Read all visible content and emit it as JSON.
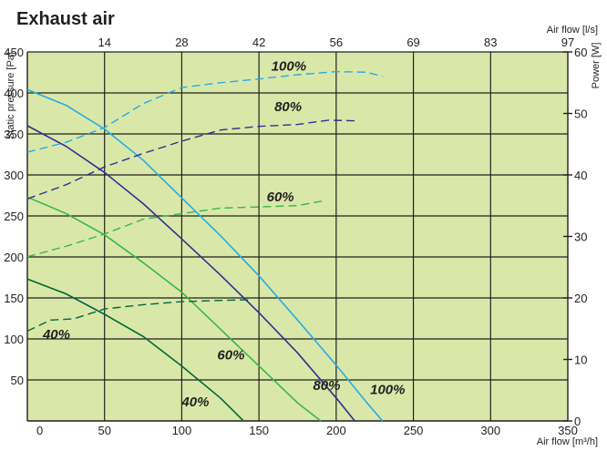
{
  "chart_data": {
    "type": "line",
    "title": "Exhaust air",
    "xlabel_bottom": "Air flow [m³/h]",
    "xlabel_top": "Air flow [l/s]",
    "ylabel_left": "Static pressure [Pa]",
    "ylabel_right": "Power [W]",
    "x_range": [
      0,
      350
    ],
    "y_range": [
      0,
      450
    ],
    "power_range": [
      0,
      60
    ],
    "x_ticks": [
      0,
      50,
      100,
      150,
      200,
      250,
      300,
      350
    ],
    "x_tick_labels": [
      "0",
      "50",
      "100",
      "150",
      "200",
      "250",
      "300",
      "350"
    ],
    "top_ticks_m3h": [
      0,
      50,
      100,
      150,
      200,
      250,
      300,
      350
    ],
    "top_tick_labels": [
      "",
      "14",
      "28",
      "42",
      "56",
      "69",
      "83",
      "97"
    ],
    "y_ticks": [
      50,
      100,
      150,
      200,
      250,
      300,
      350,
      400,
      450
    ],
    "y_tick_labels": [
      "50",
      "100",
      "150",
      "200",
      "250",
      "300",
      "350",
      "400",
      "450"
    ],
    "power_ticks": [
      0,
      10,
      20,
      30,
      40,
      50,
      60
    ],
    "power_tick_labels": [
      "0",
      "10",
      "20",
      "30",
      "40",
      "50",
      "60"
    ],
    "grid": true,
    "colors": {
      "background": "#d9e8a9",
      "grid": "#231f20",
      "s40": "#006837",
      "s60": "#39b54a",
      "s80": "#2e3192",
      "s100": "#29abe2"
    },
    "pressure_series": [
      {
        "name": "40%",
        "color_key": "s40",
        "label_at": [
          100,
          18
        ],
        "points": [
          [
            0,
            173
          ],
          [
            25,
            155
          ],
          [
            50,
            130
          ],
          [
            75,
            103
          ],
          [
            100,
            67
          ],
          [
            125,
            28
          ],
          [
            140,
            0
          ]
        ]
      },
      {
        "name": "60%",
        "color_key": "s60",
        "label_at": [
          123,
          75
        ],
        "points": [
          [
            0,
            273
          ],
          [
            25,
            253
          ],
          [
            50,
            227
          ],
          [
            75,
            193
          ],
          [
            100,
            157
          ],
          [
            125,
            112
          ],
          [
            150,
            67
          ],
          [
            175,
            22
          ],
          [
            190,
            0
          ]
        ]
      },
      {
        "name": "80%",
        "color_key": "s80",
        "label_at": [
          185,
          38
        ],
        "points": [
          [
            0,
            360
          ],
          [
            25,
            335
          ],
          [
            50,
            303
          ],
          [
            75,
            265
          ],
          [
            100,
            222
          ],
          [
            125,
            178
          ],
          [
            150,
            132
          ],
          [
            175,
            83
          ],
          [
            200,
            28
          ],
          [
            212,
            0
          ]
        ]
      },
      {
        "name": "100%",
        "color_key": "s100",
        "label_at": [
          222,
          33
        ],
        "points": [
          [
            0,
            404
          ],
          [
            25,
            385
          ],
          [
            50,
            356
          ],
          [
            75,
            318
          ],
          [
            100,
            272
          ],
          [
            125,
            226
          ],
          [
            150,
            177
          ],
          [
            175,
            123
          ],
          [
            200,
            68
          ],
          [
            220,
            22
          ],
          [
            230,
            0
          ]
        ]
      }
    ],
    "power_series": [
      {
        "name": "40%",
        "color_key": "s40",
        "label_at": [
          10,
          100
        ],
        "points": [
          [
            0,
            14.6
          ],
          [
            15,
            16.4
          ],
          [
            30,
            16.6
          ],
          [
            50,
            18.2
          ],
          [
            75,
            18.9
          ],
          [
            100,
            19.4
          ],
          [
            125,
            19.6
          ],
          [
            145,
            19.7
          ]
        ]
      },
      {
        "name": "60%",
        "color_key": "s60",
        "label_at": [
          155,
          268
        ],
        "points": [
          [
            0,
            26.7
          ],
          [
            25,
            28.4
          ],
          [
            50,
            30.4
          ],
          [
            75,
            32.8
          ],
          [
            100,
            33.7
          ],
          [
            125,
            34.6
          ],
          [
            150,
            34.8
          ],
          [
            175,
            35.0
          ],
          [
            192,
            35.8
          ]
        ]
      },
      {
        "name": "80%",
        "color_key": "s80",
        "label_at": [
          160,
          378
        ],
        "points": [
          [
            0,
            36.1
          ],
          [
            25,
            38.4
          ],
          [
            50,
            41.3
          ],
          [
            75,
            43.5
          ],
          [
            100,
            45.5
          ],
          [
            125,
            47.3
          ],
          [
            150,
            47.9
          ],
          [
            175,
            48.2
          ],
          [
            195,
            48.9
          ],
          [
            212,
            48.8
          ]
        ]
      },
      {
        "name": "100%",
        "color_key": "s100",
        "label_at": [
          158,
          427
        ],
        "points": [
          [
            0,
            43.7
          ],
          [
            25,
            45.3
          ],
          [
            50,
            47.7
          ],
          [
            75,
            51.6
          ],
          [
            100,
            54.2
          ],
          [
            125,
            55.0
          ],
          [
            150,
            55.6
          ],
          [
            175,
            56.3
          ],
          [
            200,
            56.8
          ],
          [
            220,
            56.7
          ],
          [
            230,
            56.0
          ]
        ]
      }
    ]
  }
}
